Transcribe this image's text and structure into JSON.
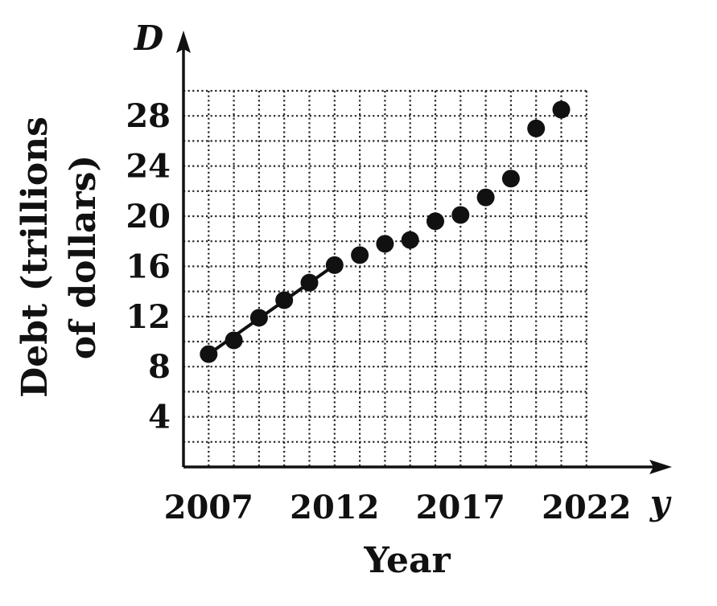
{
  "chart_data": {
    "type": "scatter",
    "title": "",
    "xlabel": "Year",
    "ylabel_lines": [
      "Debt (trillions",
      "of dollars)"
    ],
    "x_variable": "y",
    "y_variable": "D",
    "x_ticks": [
      2007,
      2012,
      2017,
      2022
    ],
    "y_ticks": [
      4,
      8,
      12,
      16,
      20,
      24,
      28
    ],
    "xlim": [
      2006,
      2022
    ],
    "ylim": [
      0,
      30
    ],
    "grid": "dotted",
    "fit_line": {
      "from": [
        2007,
        9.0
      ],
      "to": [
        2012,
        16.1
      ]
    },
    "points": [
      {
        "x": 2007,
        "y": 9.0
      },
      {
        "x": 2008,
        "y": 10.1
      },
      {
        "x": 2009,
        "y": 11.9
      },
      {
        "x": 2010,
        "y": 13.3
      },
      {
        "x": 2011,
        "y": 14.7
      },
      {
        "x": 2012,
        "y": 16.1
      },
      {
        "x": 2013,
        "y": 16.9
      },
      {
        "x": 2014,
        "y": 17.8
      },
      {
        "x": 2015,
        "y": 18.1
      },
      {
        "x": 2016,
        "y": 19.6
      },
      {
        "x": 2017,
        "y": 20.1
      },
      {
        "x": 2018,
        "y": 21.5
      },
      {
        "x": 2019,
        "y": 23.0
      },
      {
        "x": 2020,
        "y": 27.0
      },
      {
        "x": 2021,
        "y": 28.5
      }
    ],
    "colors": {
      "marks": "#111111",
      "grid": "#222222"
    }
  }
}
